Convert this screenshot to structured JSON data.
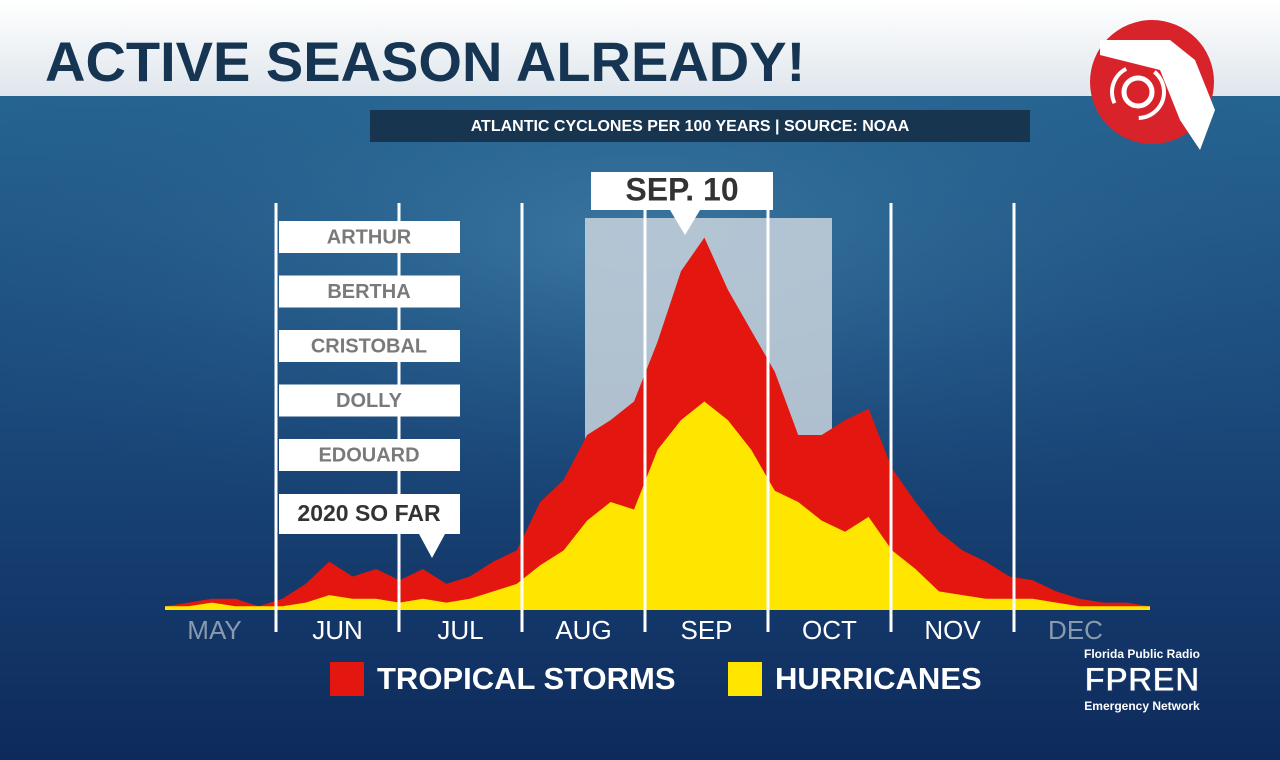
{
  "chart_data": {
    "type": "area",
    "title": "ACTIVE SEASON ALREADY!",
    "subtitle": "ATLANTIC CYCLONES PER 100 YEARS | SOURCE: NOAA",
    "month_labels": [
      "MAY",
      "JUN",
      "JUL",
      "AUG",
      "SEP",
      "OCT",
      "NOV",
      "DEC"
    ],
    "series": [
      {
        "name": "TROPICAL STORMS",
        "color": "#e3170f",
        "values": [
          1,
          2,
          3,
          3,
          1,
          3,
          7,
          13,
          9,
          11,
          8,
          11,
          7,
          9,
          13,
          16,
          29,
          35,
          47,
          51,
          56,
          72,
          91,
          100,
          86,
          75,
          64,
          47,
          47,
          51,
          54,
          38,
          29,
          21,
          16,
          13,
          9,
          8,
          5,
          3,
          2,
          2,
          1
        ]
      },
      {
        "name": "HURRICANES",
        "color": "#ffe600",
        "values": [
          1,
          1,
          2,
          1,
          1,
          1,
          2,
          4,
          3,
          3,
          2,
          3,
          2,
          3,
          5,
          7,
          12,
          16,
          24,
          29,
          27,
          43,
          51,
          56,
          51,
          43,
          32,
          29,
          24,
          21,
          25,
          16,
          11,
          5,
          4,
          3,
          3,
          3,
          2,
          1,
          1,
          1,
          1
        ]
      }
    ],
    "ylim": [
      0,
      105
    ],
    "peak_label": "SEP. 10",
    "storm_names": [
      "ARTHUR",
      "BERTHA",
      "CRISTOBAL",
      "DOLLY",
      "EDOUARD"
    ],
    "season_marker": "2020 SO FAR"
  },
  "logo": {
    "line1": "Florida Public Radio",
    "name": "FPREN",
    "line2": "Emergency Network"
  }
}
